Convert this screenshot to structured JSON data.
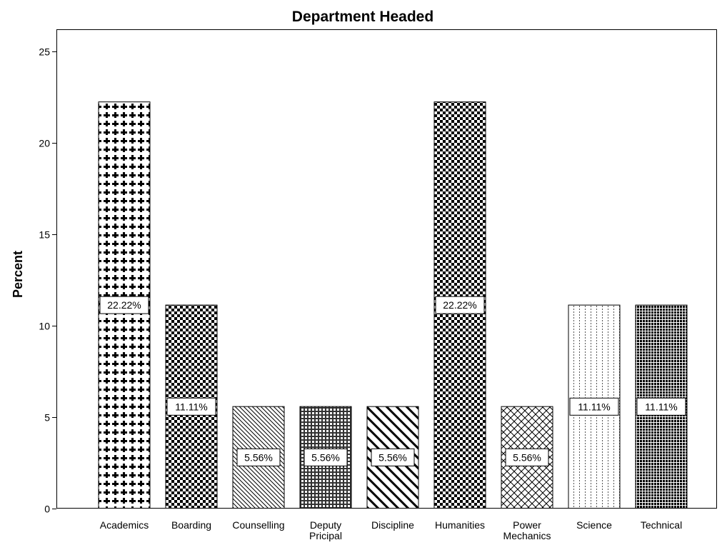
{
  "chart_data": {
    "type": "bar",
    "title": "Department Headed",
    "xlabel": "",
    "ylabel": "Percent",
    "ylim": [
      0,
      26
    ],
    "yticks": [
      0,
      5,
      10,
      15,
      20,
      25
    ],
    "grid": false,
    "categories": [
      [
        "Academics"
      ],
      [
        "Boarding"
      ],
      [
        "Counselling"
      ],
      [
        "Deputy",
        "Pricipal"
      ],
      [
        "Discipline"
      ],
      [
        "Humanities"
      ],
      [
        "Power",
        "Mechanics"
      ],
      [
        "Science"
      ],
      [
        "Technical"
      ]
    ],
    "values": [
      22.22,
      11.11,
      5.56,
      5.56,
      5.56,
      22.22,
      5.56,
      11.11,
      11.11
    ],
    "data_labels": [
      "22.22%",
      "11.11%",
      "5.56%",
      "5.56%",
      "5.56%",
      "22.22%",
      "5.56%",
      "11.11%",
      "11.11%"
    ],
    "patterns": [
      "crosses",
      "checker",
      "diag-fine",
      "grid",
      "diag-bold",
      "checker",
      "crosshatch",
      "vert-dotted",
      "dots"
    ]
  }
}
